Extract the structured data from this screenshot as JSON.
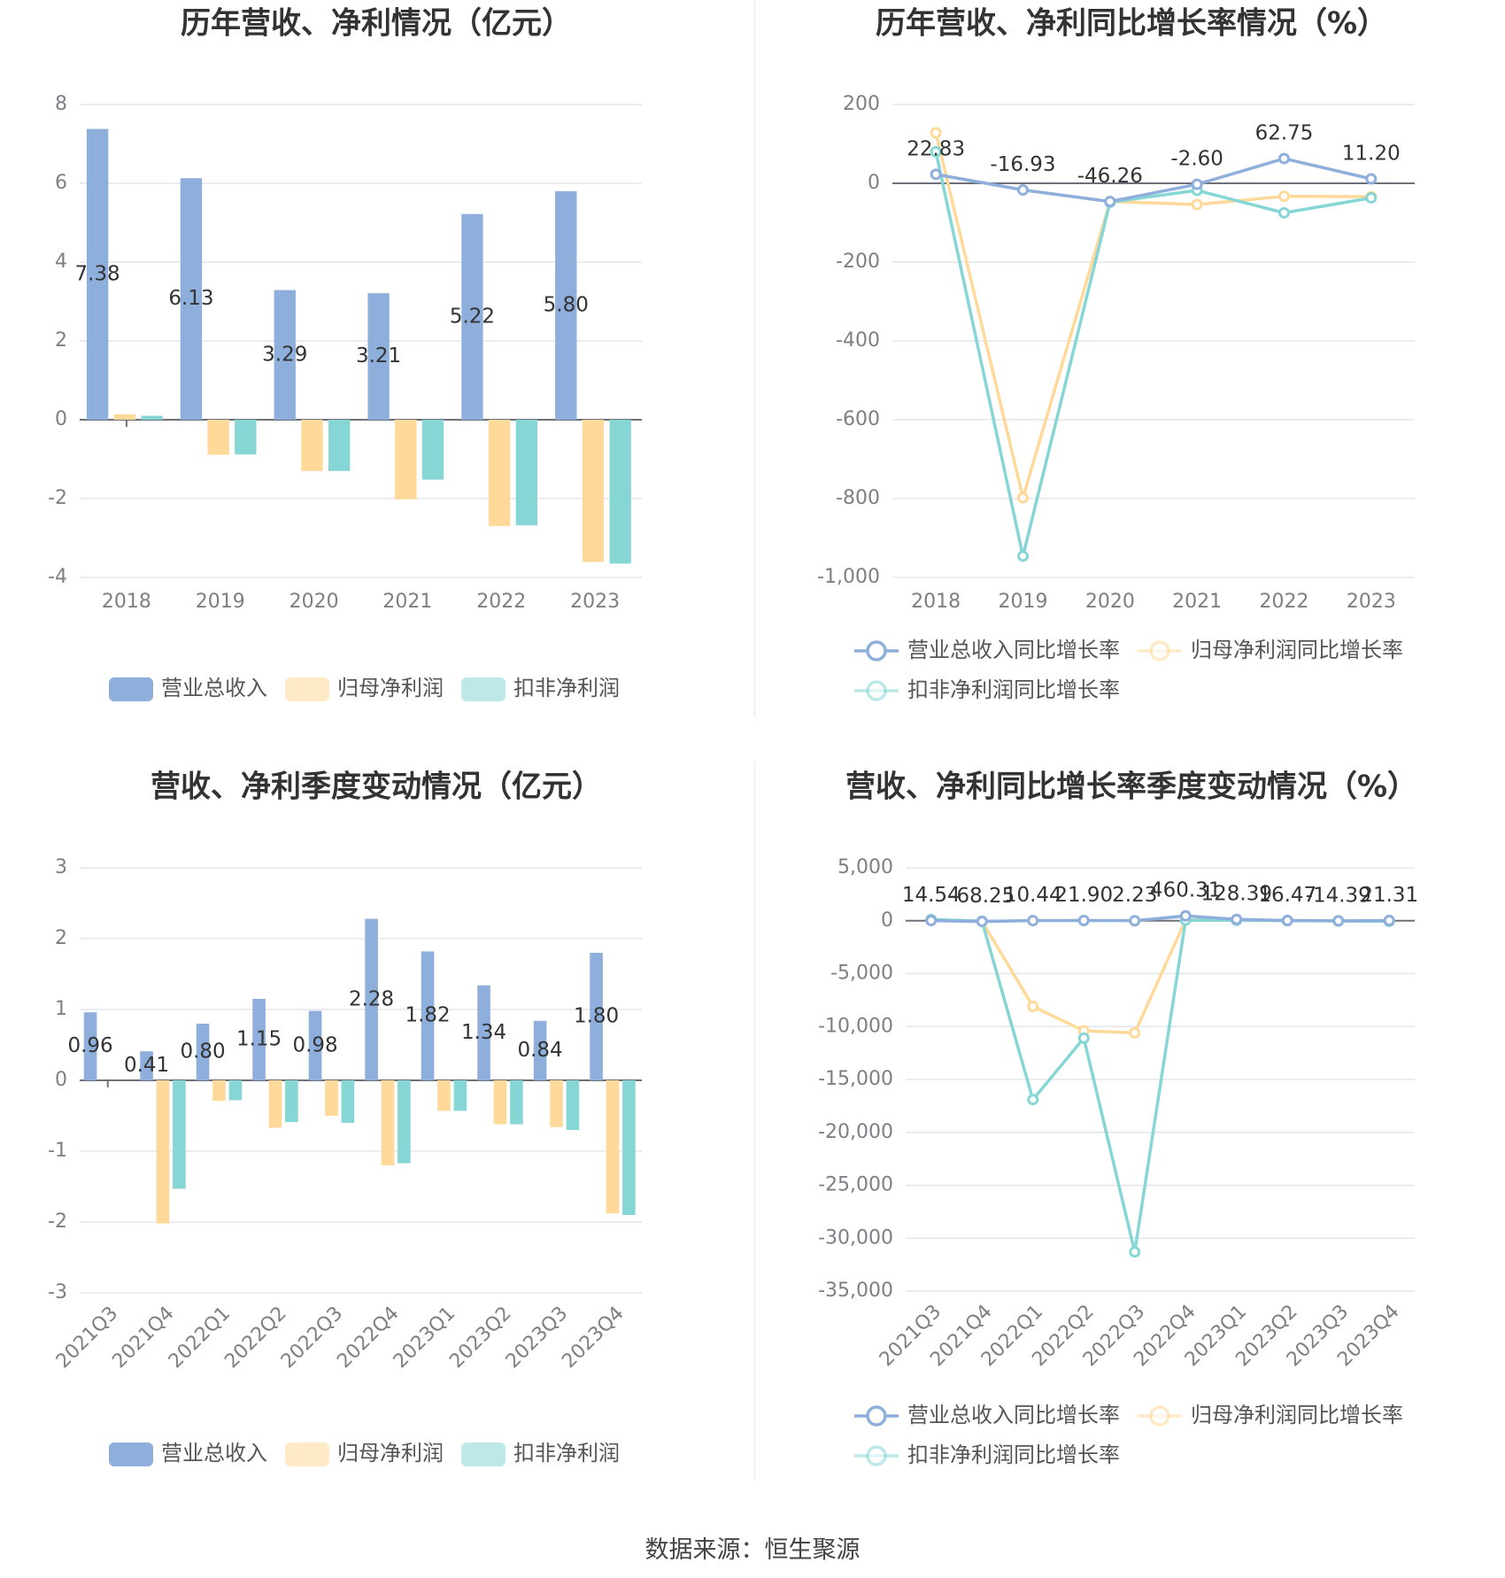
{
  "colors": {
    "revenue": "#8eaedb",
    "net_profit": "#ffd99a",
    "deducted": "#86d6d6",
    "grid": "#e3e6ee",
    "axis": "#6e7079"
  },
  "source_text": "数据来源：恒生聚源",
  "chart_data": [
    {
      "id": "annual_values",
      "type": "bar",
      "title": "历年营收、净利情况（亿元）",
      "categories": [
        "2018",
        "2019",
        "2020",
        "2021",
        "2022",
        "2023"
      ],
      "series": [
        {
          "name": "营业总收入",
          "values": [
            7.38,
            6.13,
            3.29,
            3.21,
            5.22,
            5.8
          ]
        },
        {
          "name": "归母净利润",
          "values": [
            0.14,
            -0.89,
            -1.3,
            -2.02,
            -2.7,
            -3.61
          ]
        },
        {
          "name": "扣非净利润",
          "values": [
            0.1,
            -0.88,
            -1.3,
            -1.52,
            -2.68,
            -3.65
          ]
        }
      ],
      "data_labels": [
        "7.38",
        "6.13",
        "3.29",
        "3.21",
        "5.22",
        "5.80"
      ],
      "yticks": [
        "8",
        "6",
        "4",
        "2",
        "0",
        "-2",
        "-4"
      ],
      "ylim": [
        -4,
        8
      ],
      "grid": true,
      "legend_position": "bottom"
    },
    {
      "id": "annual_growth",
      "type": "line",
      "title": "历年营收、净利同比增长率情况（%）",
      "categories": [
        "2018",
        "2019",
        "2020",
        "2021",
        "2022",
        "2023"
      ],
      "series": [
        {
          "name": "营业总收入同比增长率",
          "values": [
            22.83,
            -16.93,
            -46.26,
            -2.6,
            62.75,
            11.2
          ]
        },
        {
          "name": "归母净利润同比增长率",
          "values": [
            128,
            -798,
            -46,
            -54,
            -33,
            -34
          ]
        },
        {
          "name": "扣非净利润同比增长率",
          "values": [
            80,
            -946,
            -48,
            -18,
            -75,
            -37
          ]
        }
      ],
      "data_labels": [
        "22.83",
        "-16.93",
        "-46.26",
        "-2.60",
        "62.75",
        "11.20"
      ],
      "yticks": [
        "200",
        "0",
        "-200",
        "-400",
        "-600",
        "-800",
        "-1,000"
      ],
      "ylim": [
        -1000,
        200
      ],
      "grid": true,
      "legend_position": "bottom"
    },
    {
      "id": "quarterly_values",
      "type": "bar",
      "title": "营收、净利季度变动情况（亿元）",
      "categories": [
        "2021Q3",
        "2021Q4",
        "2022Q1",
        "2022Q2",
        "2022Q3",
        "2022Q4",
        "2023Q1",
        "2023Q2",
        "2023Q3",
        "2023Q4"
      ],
      "series": [
        {
          "name": "营业总收入",
          "values": [
            0.96,
            0.41,
            0.8,
            1.15,
            0.98,
            2.28,
            1.82,
            1.34,
            0.84,
            1.8
          ]
        },
        {
          "name": "归母净利润",
          "values": [
            0.0,
            -2.02,
            -0.29,
            -0.67,
            -0.5,
            -1.2,
            -0.43,
            -0.62,
            -0.66,
            -1.88
          ]
        },
        {
          "name": "扣非净利润",
          "values": [
            0.0,
            -1.53,
            -0.28,
            -0.59,
            -0.6,
            -1.17,
            -0.43,
            -0.62,
            -0.7,
            -1.9
          ]
        }
      ],
      "data_labels": [
        "0.96",
        "0.41",
        "0.80",
        "1.15",
        "0.98",
        "2.28",
        "1.82",
        "1.34",
        "0.84",
        "1.80"
      ],
      "yticks": [
        "3",
        "2",
        "1",
        "0",
        "-1",
        "-2",
        "-3"
      ],
      "ylim": [
        -3,
        3
      ],
      "grid": true,
      "legend_position": "bottom"
    },
    {
      "id": "quarterly_growth",
      "type": "line",
      "title": "营收、净利同比增长率季度变动情况（%）",
      "categories": [
        "2021Q3",
        "2021Q4",
        "2022Q1",
        "2022Q2",
        "2022Q3",
        "2022Q4",
        "2023Q1",
        "2023Q2",
        "2023Q3",
        "2023Q4"
      ],
      "series": [
        {
          "name": "营业总收入同比增长率",
          "values": [
            14.54,
            -68.25,
            10.44,
            21.9,
            2.23,
            460.31,
            128.39,
            16.47,
            -14.39,
            21.31
          ]
        },
        {
          "name": "归母净利润同比增长率",
          "values": [
            100,
            -50,
            -8100,
            -10400,
            -10600,
            80,
            60,
            20,
            0,
            -40
          ]
        },
        {
          "name": "扣非净利润同比增长率",
          "values": [
            120,
            -40,
            -16900,
            -11100,
            -31300,
            60,
            40,
            10,
            -20,
            -50
          ]
        }
      ],
      "data_labels": [
        "14.54",
        "-68.25",
        "10.44",
        "21.90",
        "2.23",
        "460.31",
        "128.39",
        "16.47",
        "-14.39",
        "21.31"
      ],
      "yticks": [
        "5,000",
        "0",
        "-5,000",
        "-10,000",
        "-15,000",
        "-20,000",
        "-25,000",
        "-30,000",
        "-35,000"
      ],
      "ylim": [
        -35000,
        5000
      ],
      "grid": true,
      "legend_position": "bottom"
    }
  ]
}
